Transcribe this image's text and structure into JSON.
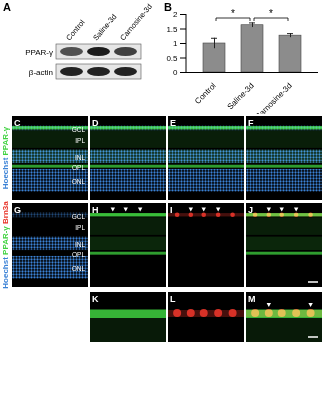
{
  "chart_data": {
    "type": "bar",
    "title": "B",
    "categories": [
      "Control",
      "Saline-3d",
      "Carnosine-3d"
    ],
    "values": [
      1.0,
      1.63,
      1.27
    ],
    "errors": [
      0.18,
      0.08,
      0.07
    ],
    "color": "#8c8c8c",
    "ylim": [
      0,
      2
    ],
    "yticks": [
      0,
      0.5,
      1,
      1.5,
      2
    ],
    "annotations": [
      {
        "from": "Control",
        "to": "Saline-3d",
        "text": "*"
      },
      {
        "from": "Saline-3d",
        "to": "Carnosine-3d",
        "text": "*"
      }
    ]
  },
  "figure": {
    "blot": {
      "letter": "A",
      "lanes": [
        "Control",
        "Saline-3d",
        "Carnosine-3d"
      ],
      "bands": [
        "PPAR-γ",
        "β-actin"
      ]
    },
    "stains": [
      {
        "text": "PPAR-γ",
        "color": "#3fd23f"
      },
      {
        "text": "Brn3a",
        "color": "#e8352a"
      },
      {
        "text": "Hoechst",
        "color": "#3b82d6"
      }
    ],
    "rows": [
      {
        "side_label": [
          "Hoechst",
          "PPAR-γ"
        ],
        "panels": [
          {
            "letter": "C",
            "channels": [
              "Hoechst",
              "PPAR-γ"
            ],
            "layers": [
              "GCL",
              "IPL",
              "INL",
              "OPL",
              "ONL"
            ]
          },
          {
            "letter": "D",
            "channels": [
              "Hoechst",
              "PPAR-γ"
            ]
          },
          {
            "letter": "E",
            "channels": [
              "Hoechst",
              "PPAR-γ"
            ]
          },
          {
            "letter": "F",
            "channels": [
              "Hoechst",
              "PPAR-γ"
            ]
          }
        ]
      },
      {
        "side_label": [
          "Hoechst",
          "PPAR-γ",
          "Brn3a"
        ],
        "panels": [
          {
            "letter": "G",
            "channels": [
              "Hoechst"
            ],
            "layers": [
              "GCL",
              "IPL",
              "INL",
              "OPL",
              "ONL"
            ]
          },
          {
            "letter": "H",
            "channels": [
              "PPAR-γ"
            ]
          },
          {
            "letter": "I",
            "channels": [
              "Brn3a"
            ]
          },
          {
            "letter": "J",
            "channels": [
              "PPAR-γ",
              "Brn3a"
            ]
          }
        ]
      },
      {
        "side_label": [],
        "panels": [
          {
            "letter": "K",
            "channels": [
              "PPAR-γ"
            ]
          },
          {
            "letter": "L",
            "channels": [
              "Brn3a"
            ]
          },
          {
            "letter": "M",
            "channels": [
              "PPAR-γ",
              "Brn3a"
            ]
          }
        ]
      }
    ]
  }
}
